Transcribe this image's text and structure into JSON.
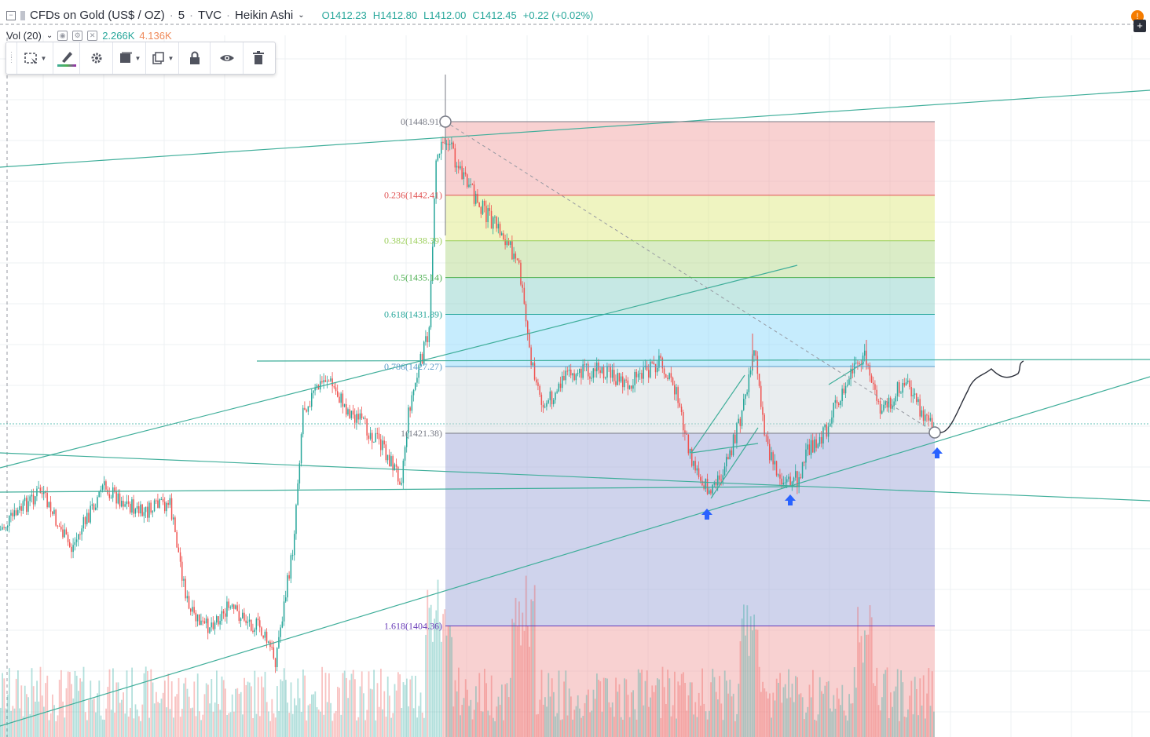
{
  "header": {
    "symbol_name": "CFDs on Gold (US$ / OZ)",
    "interval": "5",
    "exchange": "TVC",
    "chart_style": "Heikin Ashi",
    "sep": "·",
    "ohlc": {
      "open": "O1412.23",
      "high": "H1412.80",
      "low": "L1412.00",
      "close": "C1412.45",
      "change": "+0.22 (+0.02%)"
    }
  },
  "volume_legend": {
    "label": "Vol (20)",
    "value1": "2.266K",
    "value2": "4.136K"
  },
  "toolbar": {
    "items": [
      "select-area-icon",
      "brush-icon",
      "gear-icon",
      "template-icon",
      "clone-icon",
      "lock-icon",
      "eye-icon",
      "trash-icon"
    ]
  },
  "fib_levels": [
    {
      "label": "0(1448.91)",
      "price": 1448.91,
      "color": "#787b86"
    },
    {
      "label": "0.236(1442.41)",
      "price": 1442.41,
      "color": "#e05454"
    },
    {
      "label": "0.382(1438.39)",
      "price": 1438.39,
      "color": "#9ccf5c"
    },
    {
      "label": "0.5(1435.14)",
      "price": 1435.14,
      "color": "#4caf50"
    },
    {
      "label": "0.618(1431.89)",
      "price": 1431.89,
      "color": "#26a69a"
    },
    {
      "label": "0.786(1427.27)",
      "price": 1427.27,
      "color": "#5b9cc9"
    },
    {
      "label": "1(1421.38)",
      "price": 1421.38,
      "color": "#787b86"
    },
    {
      "label": "1.618(1404.36)",
      "price": 1404.36,
      "color": "#673ab7"
    }
  ],
  "colors": {
    "up": "#26a69a",
    "down": "#ef5350",
    "trend": "#3fae9a",
    "arrow": "#2962ff"
  },
  "alert_icon": "alert-clock-icon",
  "add_icon": "plus-icon"
}
